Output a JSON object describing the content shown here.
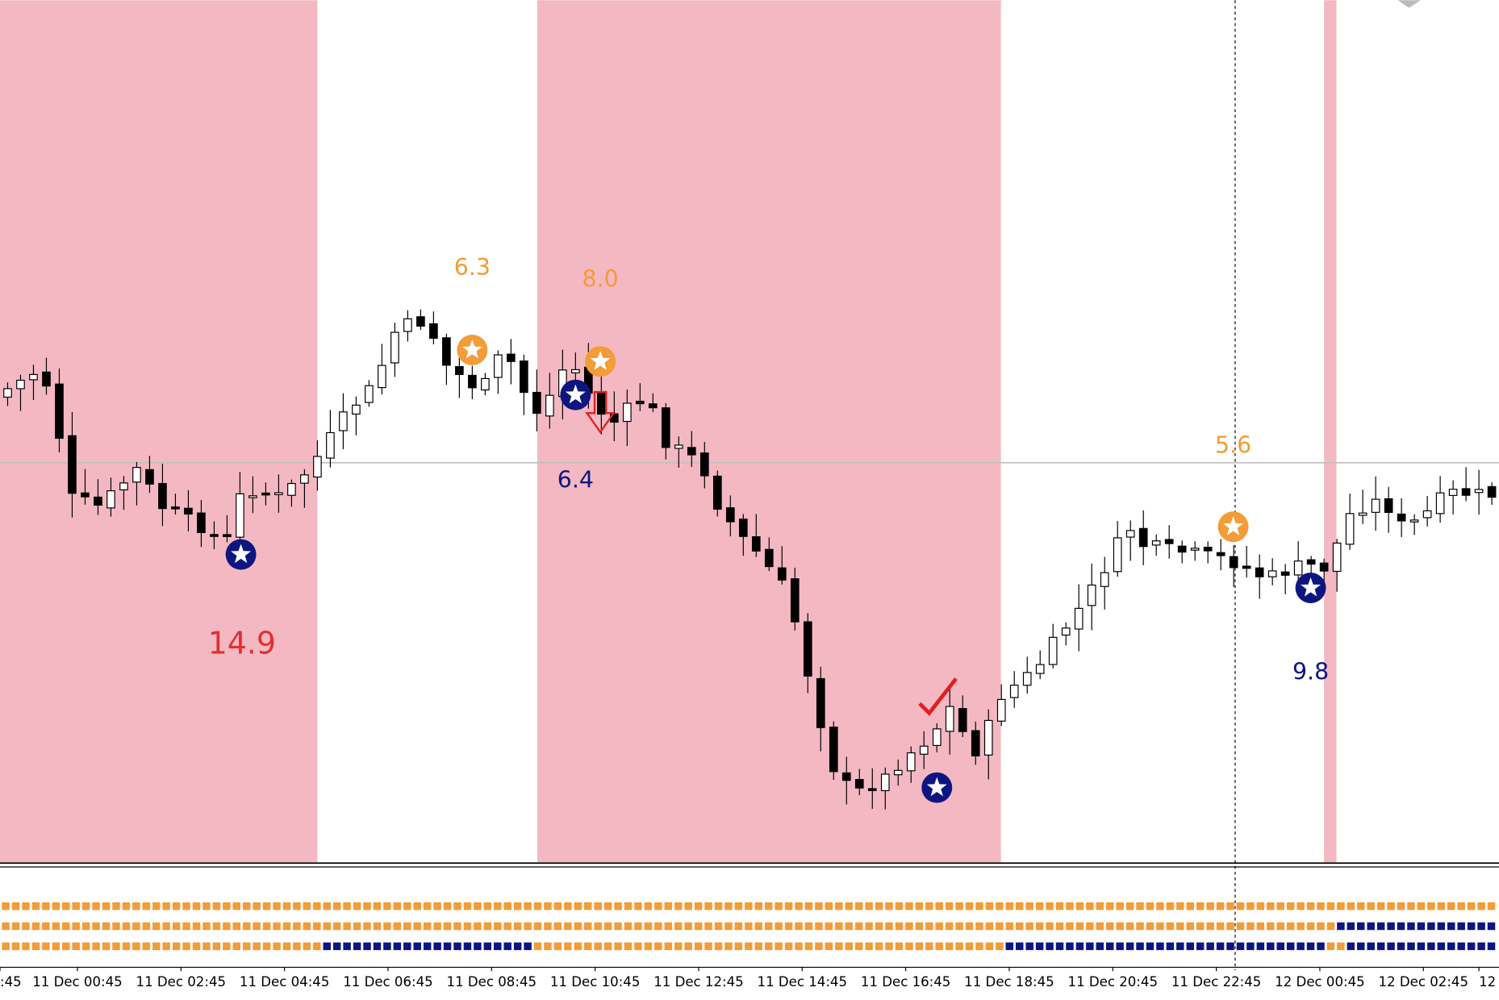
{
  "annotations": [
    {
      "label": "6.3"
    },
    {
      "label": "8.0"
    },
    {
      "label": "6.4"
    },
    {
      "label": "14.9"
    },
    {
      "label": "5.6"
    },
    {
      "label": "9.8"
    }
  ],
  "time_axis": {
    "labels": [
      ":45",
      "11 Dec 00:45",
      "11 Dec 02:45",
      "11 Dec 04:45",
      "11 Dec 06:45",
      "11 Dec 08:45",
      "11 Dec 10:45",
      "11 Dec 12:45",
      "11 Dec 14:45",
      "11 Dec 16:45",
      "11 Dec 18:45",
      "11 Dec 20:45",
      "11 Dec 22:45",
      "12 Dec 00:45",
      "12 Dec 02:45",
      "12"
    ]
  }
}
